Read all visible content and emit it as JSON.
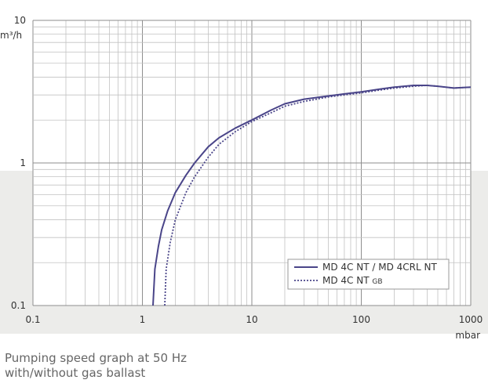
{
  "chart_data": {
    "type": "line",
    "x_scale": "log",
    "y_scale": "log",
    "xlim": [
      0.1,
      1000
    ],
    "ylim": [
      0.1,
      10
    ],
    "xlabel": "mbar",
    "ylabel": "m³/h",
    "x_ticks": [
      "0.1",
      "1",
      "10",
      "100",
      "1000"
    ],
    "y_ticks": [
      "0.1",
      "1",
      "10"
    ],
    "grid": true,
    "legend_position": "bottom-right",
    "series": [
      {
        "name": "MD 4C NT / MD 4CRL NT",
        "style": "solid",
        "color": "#4a4589",
        "x": [
          1.25,
          1.3,
          1.4,
          1.5,
          1.7,
          2.0,
          2.5,
          3,
          4,
          5,
          7,
          10,
          15,
          20,
          30,
          50,
          70,
          100,
          150,
          200,
          300,
          400,
          500,
          700,
          1000
        ],
        "y": [
          0.1,
          0.18,
          0.26,
          0.34,
          0.46,
          0.62,
          0.82,
          1.0,
          1.3,
          1.5,
          1.75,
          2.0,
          2.35,
          2.6,
          2.8,
          2.95,
          3.05,
          3.15,
          3.3,
          3.4,
          3.5,
          3.5,
          3.45,
          3.35,
          3.4
        ]
      },
      {
        "name": "MD 4C NT GB",
        "style": "dotted",
        "color": "#4a4589",
        "x": [
          1.6,
          1.65,
          1.8,
          2.0,
          2.5,
          3,
          4,
          5,
          7,
          10,
          15,
          20,
          30,
          50,
          70,
          100,
          150,
          200,
          300,
          400,
          500,
          700,
          1000
        ],
        "y": [
          0.1,
          0.18,
          0.28,
          0.4,
          0.62,
          0.8,
          1.1,
          1.35,
          1.65,
          1.95,
          2.25,
          2.5,
          2.7,
          2.9,
          3.0,
          3.1,
          3.25,
          3.35,
          3.45,
          3.5,
          3.45,
          3.35,
          3.4
        ]
      }
    ]
  },
  "legend": {
    "item1": "MD 4C NT / MD 4CRL NT",
    "item2_main": "MD 4C NT",
    "item2_sub": "GB"
  },
  "caption": {
    "line1": "Pumping speed graph at 50 Hz",
    "line2": "with/without gas ballast"
  }
}
